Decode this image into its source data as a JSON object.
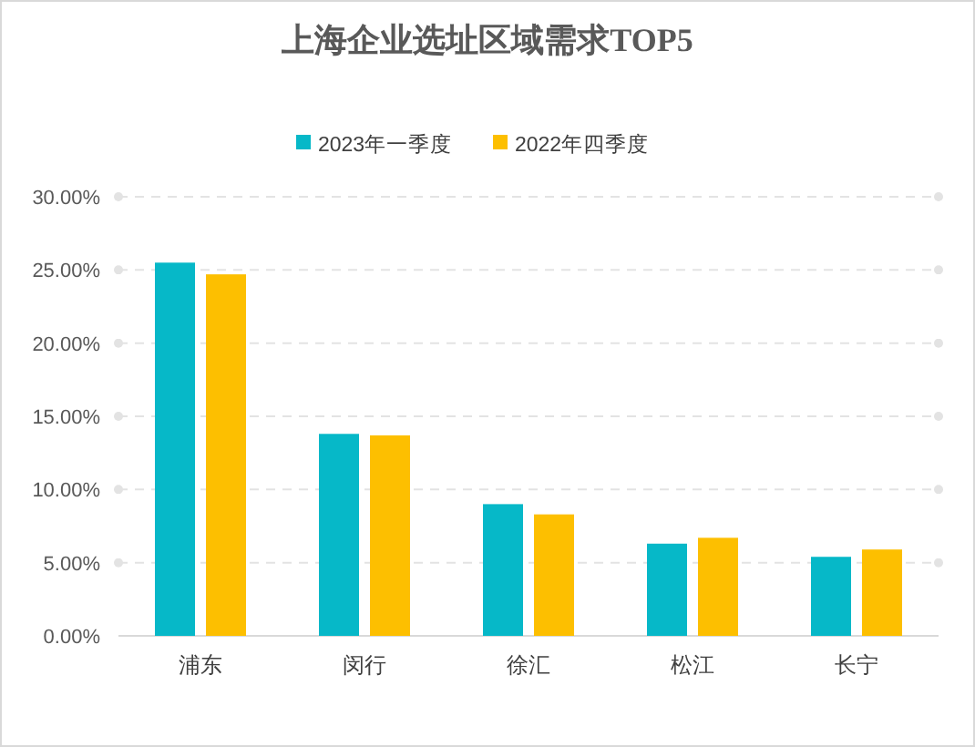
{
  "chart_data": {
    "type": "bar",
    "title": "上海企业选址区域需求TOP5",
    "categories": [
      "浦东",
      "闵行",
      "徐汇",
      "松江",
      "长宁"
    ],
    "series": [
      {
        "name": "2023年一季度",
        "color": "#06b8c8",
        "values": [
          25.5,
          13.8,
          9.0,
          6.3,
          5.4
        ]
      },
      {
        "name": "2022年四季度",
        "color": "#fdbf00",
        "values": [
          24.7,
          13.7,
          8.3,
          6.7,
          5.9
        ]
      }
    ],
    "ylim": [
      0,
      30
    ],
    "yticks": [
      {
        "value": 0,
        "label": "0.00%"
      },
      {
        "value": 5,
        "label": "5.00%"
      },
      {
        "value": 10,
        "label": "10.00%"
      },
      {
        "value": 15,
        "label": "15.00%"
      },
      {
        "value": 20,
        "label": "20.00%"
      },
      {
        "value": 25,
        "label": "25.00%"
      },
      {
        "value": 30,
        "label": "30.00%"
      }
    ],
    "grid": "y",
    "legend": "top"
  }
}
